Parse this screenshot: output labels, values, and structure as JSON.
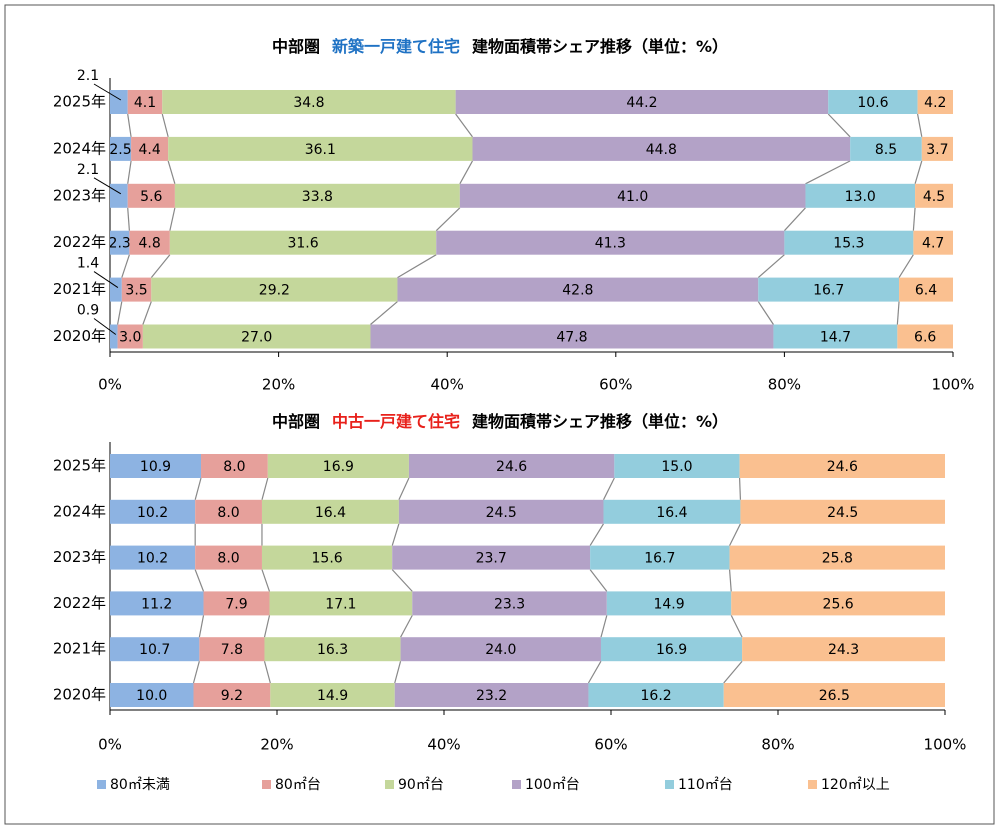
{
  "chart_data": [
    {
      "type": "bar",
      "orientation": "horizontal",
      "stacked": true,
      "title": [
        "中部圏",
        "新築一戸建て住宅",
        "建物面積帯シェア推移（単位：%）"
      ],
      "title_colors": [
        "#000000",
        "#1f72c4",
        "#000000"
      ],
      "categories": [
        "2025年",
        "2024年",
        "2023年",
        "2022年",
        "2021年",
        "2020年"
      ],
      "series": [
        {
          "name": "80㎡未満",
          "color": "#8db3e2",
          "values": [
            2.1,
            2.5,
            2.1,
            2.3,
            1.4,
            0.9
          ],
          "value_labels": [
            "2.1",
            "2.5",
            "2.1",
            "2.3",
            "1.4",
            "0.9"
          ]
        },
        {
          "name": "80㎡台",
          "color": "#e6a09b",
          "values": [
            4.1,
            4.4,
            5.6,
            4.8,
            3.5,
            3.0
          ],
          "value_labels": [
            "4.1",
            "4.4",
            "5.6",
            "4.8",
            "3.5",
            "3.0"
          ]
        },
        {
          "name": "90㎡台",
          "color": "#c4d79b",
          "values": [
            34.8,
            36.1,
            33.8,
            31.6,
            29.2,
            27.0
          ],
          "value_labels": [
            "34.8",
            "36.1",
            "33.8",
            "31.6",
            "29.2",
            "27.0"
          ]
        },
        {
          "name": "100㎡台",
          "color": "#b3a2c7",
          "values": [
            44.2,
            44.8,
            41.0,
            41.3,
            42.8,
            47.8
          ],
          "value_labels": [
            "44.2",
            "44.8",
            "41.0",
            "41.3",
            "42.8",
            "47.8"
          ]
        },
        {
          "name": "110㎡台",
          "color": "#93cddd",
          "values": [
            10.6,
            8.5,
            13.0,
            15.3,
            16.7,
            14.7
          ],
          "value_labels": [
            "10.6",
            "8.5",
            "13.0",
            "15.3",
            "16.7",
            "14.7"
          ]
        },
        {
          "name": "120㎡以上",
          "color": "#fac090",
          "values": [
            4.2,
            3.7,
            4.5,
            4.7,
            6.4,
            6.6
          ],
          "value_labels": [
            "4.2",
            "3.7",
            "4.5",
            "4.7",
            "6.4",
            "6.6"
          ]
        }
      ],
      "xlim": [
        0,
        100
      ],
      "xticks": [
        {
          "value": 0,
          "label": "0%"
        },
        {
          "value": 20,
          "label": "20%"
        },
        {
          "value": 40,
          "label": "40%"
        },
        {
          "value": 60,
          "label": "60%"
        },
        {
          "value": 80,
          "label": "80%"
        },
        {
          "value": 100,
          "label": "100%"
        }
      ]
    },
    {
      "type": "bar",
      "orientation": "horizontal",
      "stacked": true,
      "title": [
        "中部圏",
        "中古一戸建て住宅",
        "建物面積帯シェア推移（単位：%）"
      ],
      "title_colors": [
        "#000000",
        "#e8211b",
        "#000000"
      ],
      "categories": [
        "2025年",
        "2024年",
        "2023年",
        "2022年",
        "2021年",
        "2020年"
      ],
      "series": [
        {
          "name": "80㎡未満",
          "color": "#8db3e2",
          "values": [
            10.9,
            10.2,
            10.2,
            11.2,
            10.7,
            10.0
          ],
          "value_labels": [
            "10.9",
            "10.2",
            "10.2",
            "11.2",
            "10.7",
            "10.0"
          ]
        },
        {
          "name": "80㎡台",
          "color": "#e6a09b",
          "values": [
            8.0,
            8.0,
            8.0,
            7.9,
            7.8,
            9.2
          ],
          "value_labels": [
            "8.0",
            "8.0",
            "8.0",
            "7.9",
            "7.8",
            "9.2"
          ]
        },
        {
          "name": "90㎡台",
          "color": "#c4d79b",
          "values": [
            16.9,
            16.4,
            15.6,
            17.1,
            16.3,
            14.9
          ],
          "value_labels": [
            "16.9",
            "16.4",
            "15.6",
            "17.1",
            "16.3",
            "14.9"
          ]
        },
        {
          "name": "100㎡台",
          "color": "#b3a2c7",
          "values": [
            24.6,
            24.5,
            23.7,
            23.3,
            24.0,
            23.2
          ],
          "value_labels": [
            "24.6",
            "24.5",
            "23.7",
            "23.3",
            "24.0",
            "23.2"
          ]
        },
        {
          "name": "110㎡台",
          "color": "#93cddd",
          "values": [
            15.0,
            16.4,
            16.7,
            14.9,
            16.9,
            16.2
          ],
          "value_labels": [
            "15.0",
            "16.4",
            "16.7",
            "14.9",
            "16.9",
            "16.2"
          ]
        },
        {
          "name": "120㎡以上",
          "color": "#fac090",
          "values": [
            24.6,
            24.5,
            25.8,
            25.6,
            24.3,
            26.5
          ],
          "value_labels": [
            "24.6",
            "24.5",
            "25.8",
            "25.6",
            "24.3",
            "26.5"
          ]
        }
      ],
      "xlim": [
        0,
        100
      ],
      "xticks": [
        {
          "value": 0,
          "label": "0%"
        },
        {
          "value": 20,
          "label": "20%"
        },
        {
          "value": 40,
          "label": "40%"
        },
        {
          "value": 60,
          "label": "60%"
        },
        {
          "value": 80,
          "label": "80%"
        },
        {
          "value": 100,
          "label": "100%"
        }
      ]
    }
  ]
}
